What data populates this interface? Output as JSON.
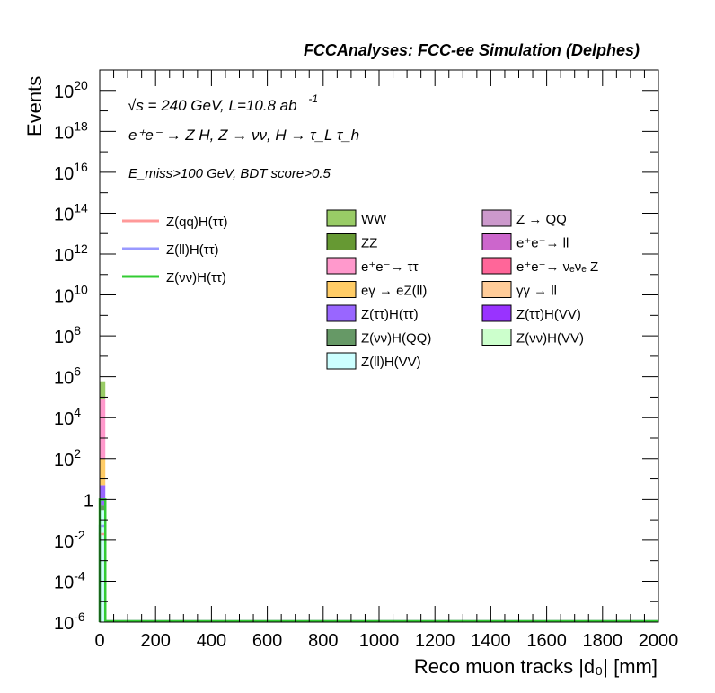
{
  "header": {
    "title": "FCCAnalyses: FCC-ee Simulation (Delphes)"
  },
  "annotations": {
    "energy_label": "√s = 240 GeV, L=10.8 ab",
    "lumi_superscript": "-1",
    "process_label": "e⁺e⁻ → Z H, Z → νν, H → τ_L τ_h",
    "selection_label": "E_miss>100 GeV, BDT score>0.5"
  },
  "colors": {
    "WW": "#99cc66",
    "ZZ": "#669933",
    "ee_tautau": "#ff99cc",
    "egamma_eZll": "#ffcc66",
    "Ztautau_Htautau": "#9966ff",
    "Znunu_HQQ": "#669966",
    "Zll_HVV": "#ccffff",
    "Z_QQ": "#cc99cc",
    "ee_ll": "#cc66cc",
    "ee_nunuZ": "#ff6699",
    "gammagamma_ll": "#ffcc99",
    "Ztautau_HVV": "#9933ff",
    "Znunu_HVV": "#ccffcc",
    "sig_Zqq": "#ff9999",
    "sig_Zll": "#9999ff",
    "sig_Znunu": "#33cc33"
  },
  "chart_data": {
    "type": "bar",
    "xlabel": "Reco muon tracks |d₀| [mm]",
    "ylabel": "Events",
    "xlim": [
      0,
      2000
    ],
    "ylim": [
      1e-06,
      1e+21
    ],
    "log_y": true,
    "grid": false,
    "x_ticks": [
      "0",
      "200",
      "400",
      "600",
      "800",
      "1000",
      "1200",
      "1400",
      "1600",
      "1800",
      "2000"
    ],
    "y_ticks": [
      {
        "base": "10",
        "exp": "-6",
        "value": 1e-06
      },
      {
        "base": "10",
        "exp": "-4",
        "value": 0.0001
      },
      {
        "base": "10",
        "exp": "-2",
        "value": 0.01
      },
      {
        "base": "1",
        "exp": "",
        "value": 1
      },
      {
        "base": "10",
        "exp": "2",
        "value": 100.0
      },
      {
        "base": "10",
        "exp": "4",
        "value": 10000.0
      },
      {
        "base": "10",
        "exp": "6",
        "value": 1000000.0
      },
      {
        "base": "10",
        "exp": "8",
        "value": 100000000.0
      },
      {
        "base": "10",
        "exp": "10",
        "value": 10000000000.0
      },
      {
        "base": "10",
        "exp": "12",
        "value": 1000000000000.0
      },
      {
        "base": "10",
        "exp": "14",
        "value": 100000000000000.0
      },
      {
        "base": "10",
        "exp": "16",
        "value": 1e+16
      },
      {
        "base": "10",
        "exp": "18",
        "value": 1e+18
      },
      {
        "base": "10",
        "exp": "20",
        "value": 1e+20
      }
    ],
    "bin_range": [
      0,
      20
    ],
    "stack": [
      {
        "name": "Z(ll)H(VV)",
        "color_key": "Zll_HVV",
        "top": 0.3
      },
      {
        "name": "Z(νν)H(QQ)",
        "color_key": "Znunu_HQQ",
        "top": 0.5
      },
      {
        "name": "Z(ττ)H(ττ)",
        "color_key": "Ztautau_Htautau",
        "top": 5
      },
      {
        "name": "eγ → eZ(ll)",
        "color_key": "egamma_eZll",
        "top": 100
      },
      {
        "name": "e⁺e⁻→ ττ",
        "color_key": "ee_tautau",
        "top": 80000
      },
      {
        "name": "WW",
        "color_key": "WW",
        "top": 600000
      }
    ],
    "signals": [
      {
        "name": "Z(qq)H(ττ)",
        "color_key": "sig_Zqq",
        "value": 0.02
      },
      {
        "name": "Z(ll)H(ττ)",
        "color_key": "sig_Zll",
        "value": 0.05
      },
      {
        "name": "Z(νν)H(ττ)",
        "color_key": "sig_Znunu",
        "value": 1
      }
    ],
    "legend_signals": [
      {
        "label": "Z(qq)H(ττ)",
        "color_key": "sig_Zqq"
      },
      {
        "label": "Z(ll)H(ττ)",
        "color_key": "sig_Zll"
      },
      {
        "label": "Z(νν)H(ττ)",
        "color_key": "sig_Znunu"
      }
    ],
    "legend_bkg_col1": [
      {
        "label": "WW",
        "color_key": "WW"
      },
      {
        "label": "ZZ",
        "color_key": "ZZ"
      },
      {
        "label": "e⁺e⁻→ ττ",
        "color_key": "ee_tautau"
      },
      {
        "label": "eγ → eZ(ll)",
        "color_key": "egamma_eZll"
      },
      {
        "label": "Z(ττ)H(ττ)",
        "color_key": "Ztautau_Htautau"
      },
      {
        "label": "Z(νν)H(QQ)",
        "color_key": "Znunu_HQQ"
      },
      {
        "label": "Z(ll)H(VV)",
        "color_key": "Zll_HVV"
      }
    ],
    "legend_bkg_col2": [
      {
        "label": "Z → QQ",
        "color_key": "Z_QQ"
      },
      {
        "label": "e⁺e⁻→ ll",
        "color_key": "ee_ll"
      },
      {
        "label": "e⁺e⁻→ νₑνₑ Z",
        "color_key": "ee_nunuZ"
      },
      {
        "label": "γγ → ll",
        "color_key": "gammagamma_ll"
      },
      {
        "label": "Z(ττ)H(VV)",
        "color_key": "Ztautau_HVV"
      },
      {
        "label": "Z(νν)H(VV)",
        "color_key": "Znunu_HVV"
      }
    ]
  }
}
